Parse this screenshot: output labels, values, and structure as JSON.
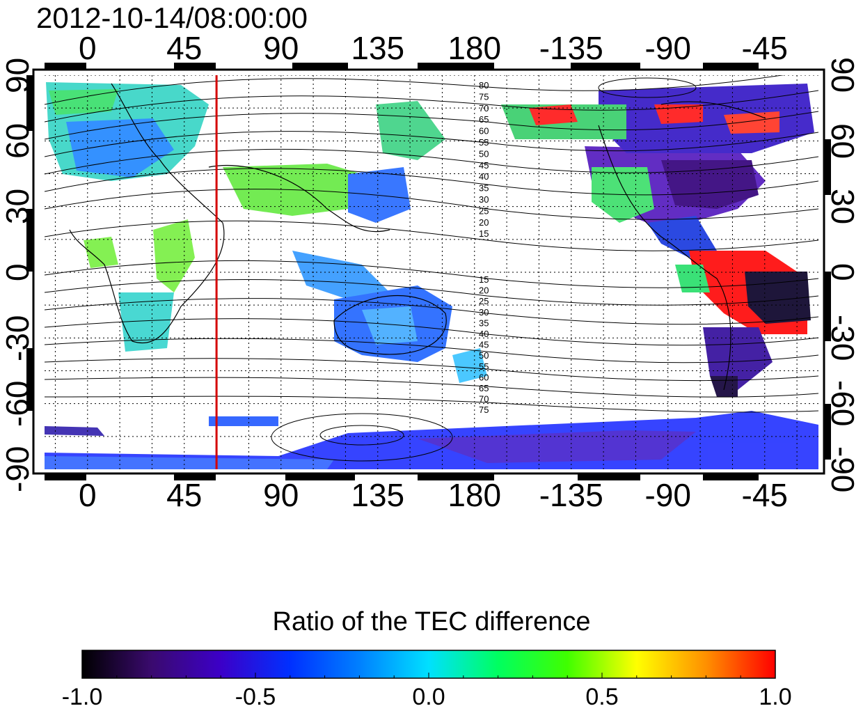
{
  "title": "2012-10-14/08:00:00",
  "map": {
    "lon_ticks": [
      "0",
      "45",
      "90",
      "135",
      "180",
      "-135",
      "-90",
      "-45"
    ],
    "lat_ticks": [
      "90",
      "60",
      "30",
      "0",
      "-30",
      "-60",
      "-90"
    ],
    "lon_range": [
      -20,
      340
    ],
    "lat_range": [
      -90,
      90
    ],
    "grid": true,
    "meridian_marker": {
      "longitude": 60,
      "color": "#d40000"
    },
    "contour_labels_north": [
      "80",
      "75",
      "70",
      "65",
      "60",
      "55",
      "50",
      "45",
      "40",
      "35",
      "30",
      "25",
      "20",
      "15"
    ],
    "contour_labels_south": [
      "15",
      "20",
      "25",
      "30",
      "35",
      "40",
      "45",
      "50",
      "55",
      "60",
      "65",
      "70",
      "75"
    ]
  },
  "colorbar": {
    "title": "Ratio of the TEC difference",
    "ticks": [
      "-1.0",
      "-0.5",
      "0.0",
      "0.5",
      "1.0"
    ],
    "range": [
      -1.0,
      1.0
    ],
    "colors": [
      "#000000",
      "#3a0a6e",
      "#3c00c8",
      "#0030ff",
      "#0080ff",
      "#00e0ff",
      "#00ff60",
      "#40ff00",
      "#ffff00",
      "#ff9000",
      "#ff0000"
    ]
  }
}
